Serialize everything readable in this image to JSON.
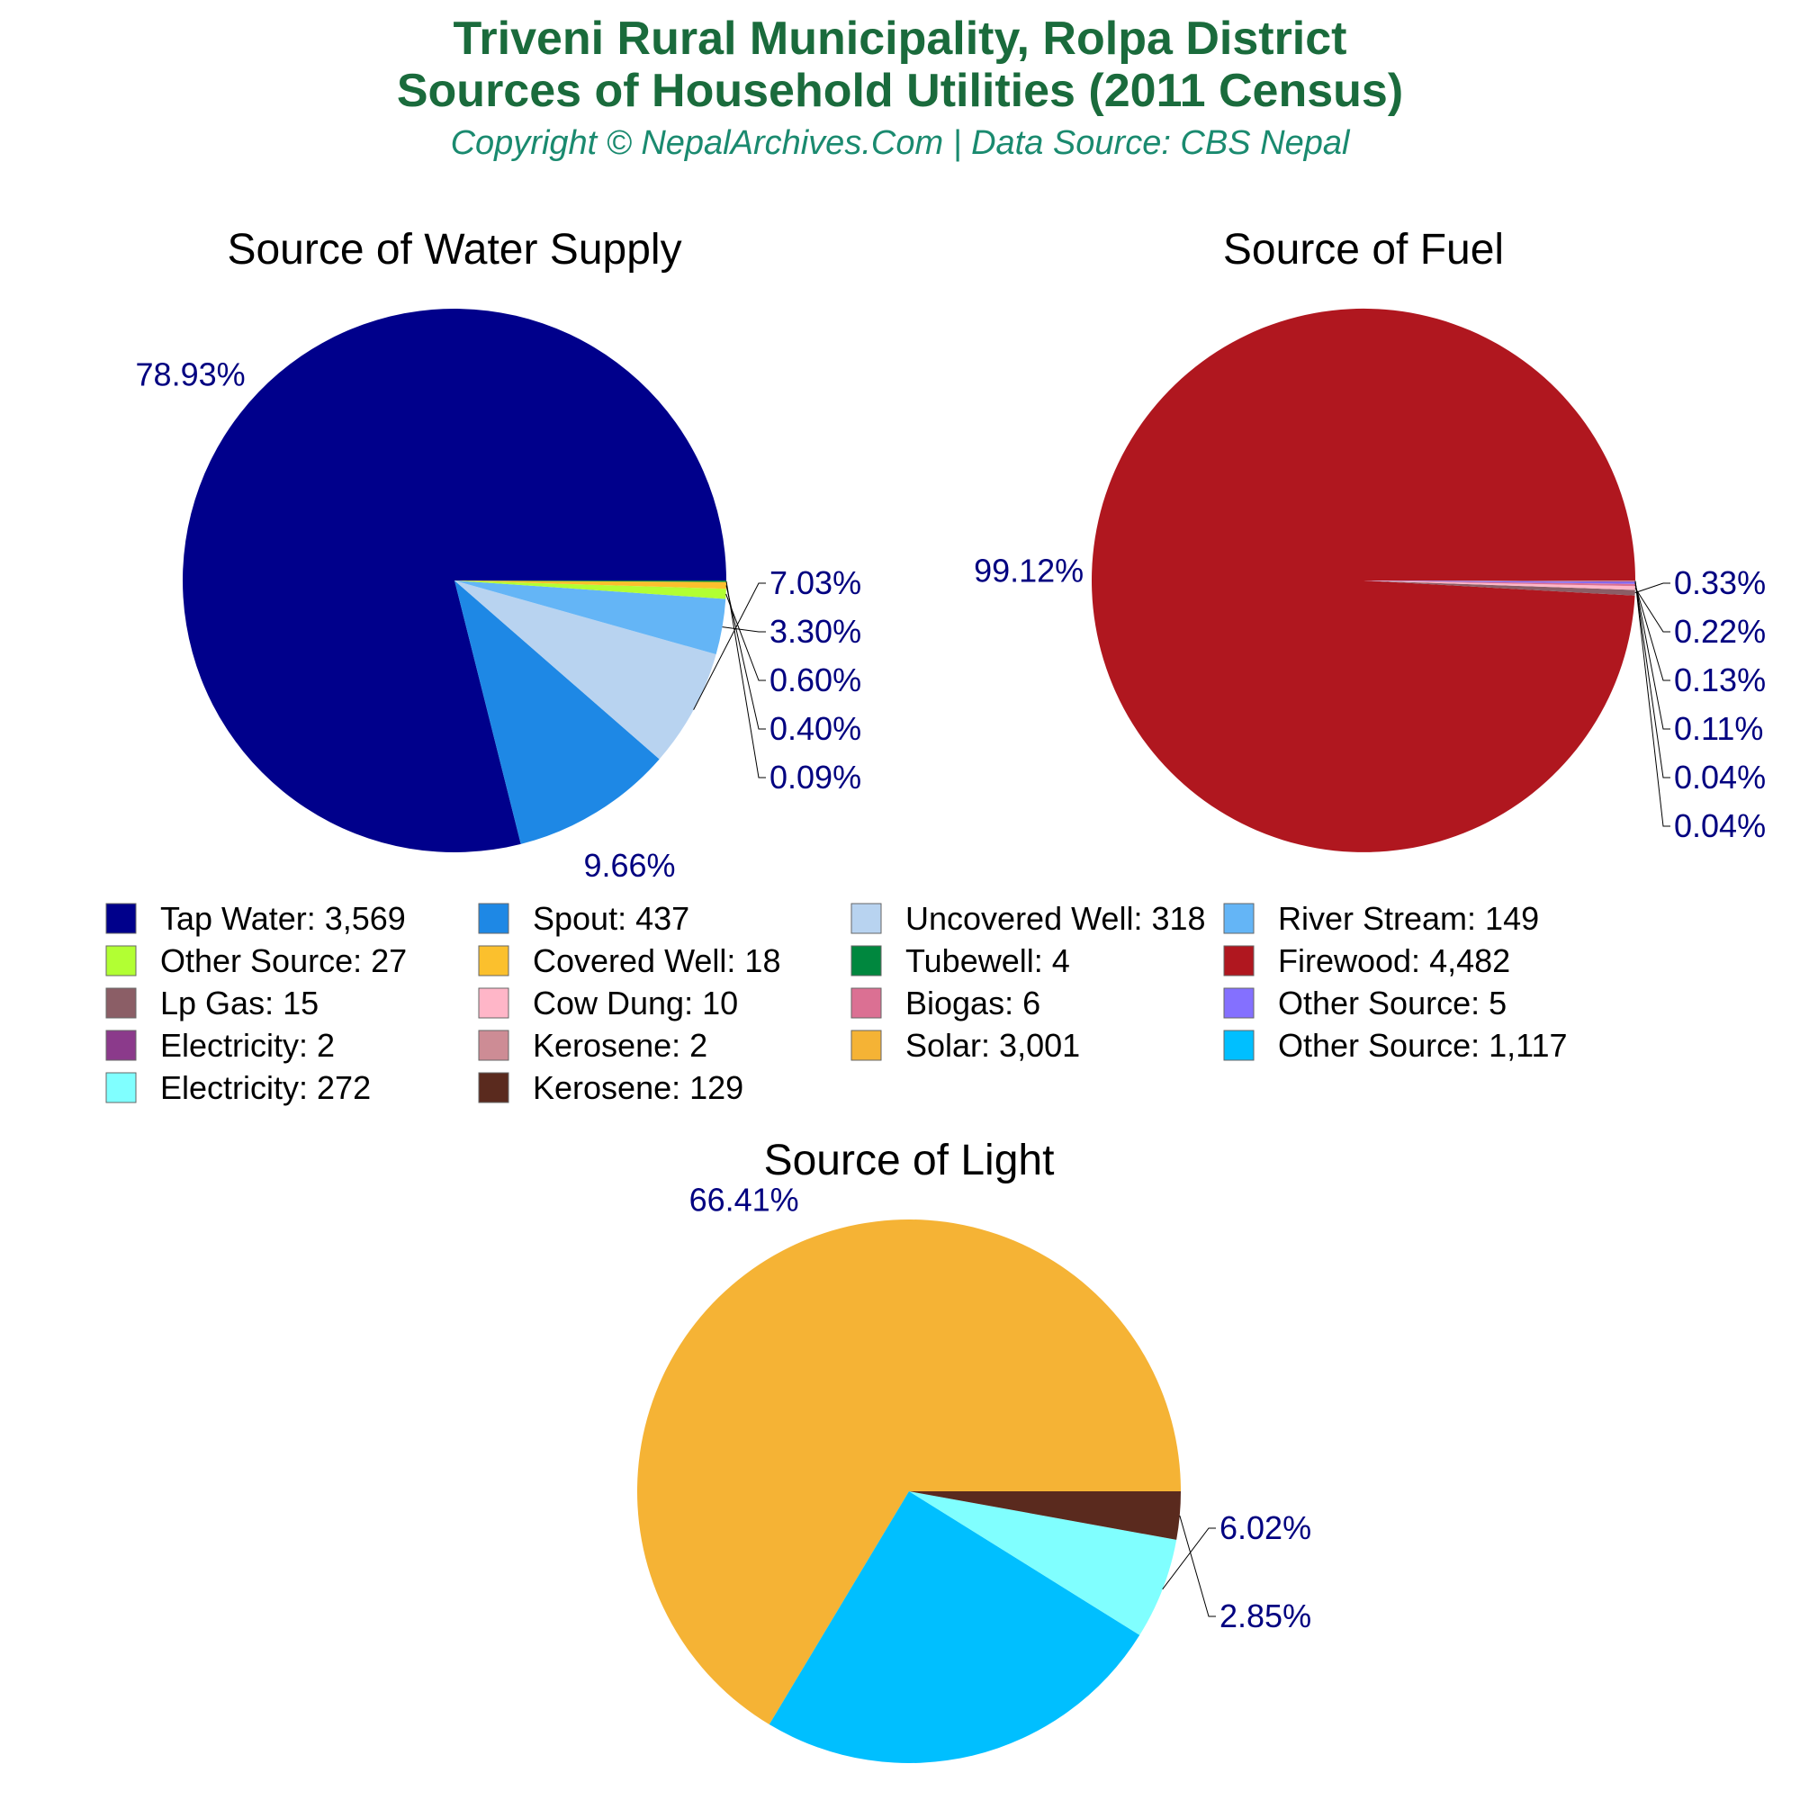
{
  "header": {
    "title_line1": "Triveni Rural Municipality, Rolpa District",
    "title_line2": "Sources of Household Utilities (2011 Census)",
    "subtitle": "Copyright © NepalArchives.Com | Data Source: CBS Nepal"
  },
  "colors": {
    "title": "#1a6b3c",
    "subtitle": "#1a8a6f",
    "pct_label": "#000080"
  },
  "chart_data": [
    {
      "type": "pie",
      "id": "water",
      "title": "Source of Water Supply",
      "slices": [
        {
          "name": "Tap Water",
          "value": 3569,
          "pct": "78.93%",
          "color": "#00008b"
        },
        {
          "name": "Spout",
          "value": 437,
          "pct": "9.66%",
          "color": "#1e88e5"
        },
        {
          "name": "Uncovered Well",
          "value": 318,
          "pct": "7.03%",
          "color": "#b8d3f0"
        },
        {
          "name": "River Stream",
          "value": 149,
          "pct": "3.30%",
          "color": "#64b5f6"
        },
        {
          "name": "Other Source",
          "value": 27,
          "pct": "0.60%",
          "color": "#b2ff33"
        },
        {
          "name": "Covered Well",
          "value": 18,
          "pct": "0.40%",
          "color": "#fbc02d"
        },
        {
          "name": "Tubewell",
          "value": 4,
          "pct": "0.09%",
          "color": "#00873e"
        }
      ]
    },
    {
      "type": "pie",
      "id": "fuel",
      "title": "Source of Fuel",
      "slices": [
        {
          "name": "Firewood",
          "value": 4482,
          "pct": "99.12%",
          "color": "#b0171f"
        },
        {
          "name": "Lp Gas",
          "value": 15,
          "pct": "0.33%",
          "color": "#8b5e66"
        },
        {
          "name": "Cow Dung",
          "value": 10,
          "pct": "0.22%",
          "color": "#ffb6c8"
        },
        {
          "name": "Biogas",
          "value": 6,
          "pct": "0.13%",
          "color": "#db7093"
        },
        {
          "name": "Other Source",
          "value": 5,
          "pct": "0.11%",
          "color": "#8470ff"
        },
        {
          "name": "Electricity",
          "value": 2,
          "pct": "0.04%",
          "color": "#8b3a8b"
        },
        {
          "name": "Kerosene",
          "value": 2,
          "pct": "0.04%",
          "color": "#cd8c95"
        }
      ]
    },
    {
      "type": "pie",
      "id": "light",
      "title": "Source of Light",
      "slices": [
        {
          "name": "Solar",
          "value": 3001,
          "pct": "66.41%",
          "color": "#f5b335"
        },
        {
          "name": "Other Source",
          "value": 1117,
          "pct": "24.72%",
          "color": "#00bfff"
        },
        {
          "name": "Electricity",
          "value": 272,
          "pct": "6.02%",
          "color": "#80ffff"
        },
        {
          "name": "Kerosene",
          "value": 129,
          "pct": "2.85%",
          "color": "#5a2a1e"
        }
      ]
    }
  ],
  "legend": {
    "items": [
      {
        "label": "Tap Water: 3,569",
        "color": "#00008b"
      },
      {
        "label": "Spout: 437",
        "color": "#1e88e5"
      },
      {
        "label": "Uncovered Well: 318",
        "color": "#b8d3f0"
      },
      {
        "label": "River Stream: 149",
        "color": "#64b5f6"
      },
      {
        "label": "Other Source: 27",
        "color": "#b2ff33"
      },
      {
        "label": "Covered Well: 18",
        "color": "#fbc02d"
      },
      {
        "label": "Tubewell: 4",
        "color": "#00873e"
      },
      {
        "label": "Firewood: 4,482",
        "color": "#b0171f"
      },
      {
        "label": "Lp Gas: 15",
        "color": "#8b5e66"
      },
      {
        "label": "Cow Dung: 10",
        "color": "#ffb6c8"
      },
      {
        "label": "Biogas: 6",
        "color": "#db7093"
      },
      {
        "label": "Other Source: 5",
        "color": "#8470ff"
      },
      {
        "label": "Electricity: 2",
        "color": "#8b3a8b"
      },
      {
        "label": "Kerosene: 2",
        "color": "#cd8c95"
      },
      {
        "label": "Solar: 3,001",
        "color": "#f5b335"
      },
      {
        "label": "Other Source: 1,117",
        "color": "#00bfff"
      },
      {
        "label": "Electricity: 272",
        "color": "#80ffff"
      },
      {
        "label": "Kerosene: 129",
        "color": "#5a2a1e"
      }
    ]
  }
}
